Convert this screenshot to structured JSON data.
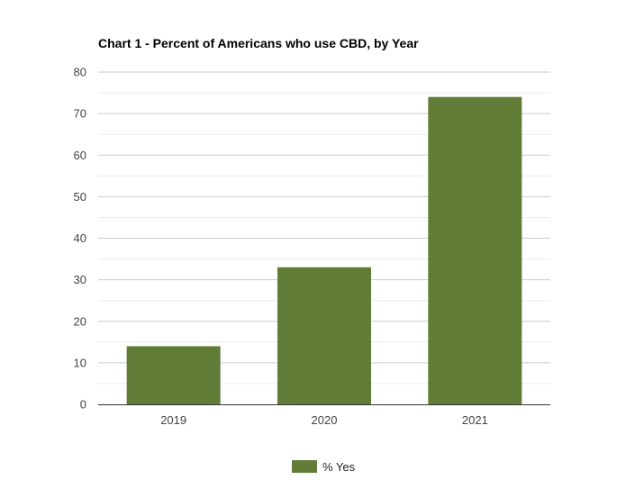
{
  "chart_data": {
    "type": "bar",
    "title": "Chart 1 - Percent of Americans who use CBD, by Year",
    "xlabel": "",
    "ylabel": "",
    "categories": [
      "2019",
      "2020",
      "2021"
    ],
    "series": [
      {
        "name": "% Yes",
        "values": [
          14,
          33,
          74
        ]
      }
    ],
    "ylim": [
      0,
      80
    ],
    "yticks": [
      0,
      10,
      20,
      30,
      40,
      50,
      60,
      70,
      80
    ],
    "grid": true,
    "legend": "bottom",
    "colors": {
      "bar": "#617c36",
      "grid_major": "#cccccc",
      "grid_minor": "#ebebeb",
      "axis": "#333333"
    }
  }
}
